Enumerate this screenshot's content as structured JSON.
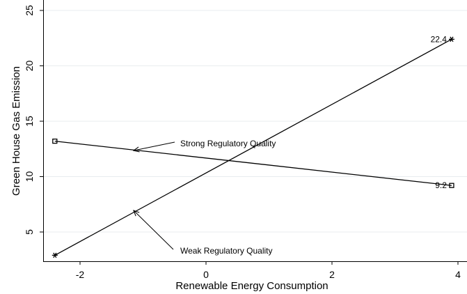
{
  "chart_data": {
    "type": "line",
    "xlabel": "Renewable Energy Consumption",
    "ylabel": "Green House Gas Emission",
    "xlim": [
      -2.45,
      3.95
    ],
    "ylim": [
      2.5,
      25.5
    ],
    "x_ticks": [
      -2,
      0,
      2,
      4
    ],
    "y_ticks": [
      5,
      10,
      15,
      20,
      25
    ],
    "grid": "horizontal",
    "legend": "none",
    "series": [
      {
        "name": "Strong Regulatory Quality",
        "marker": "square",
        "x": [
          -2.4,
          3.9
        ],
        "y": [
          13.2,
          9.2
        ],
        "end_label": "9.2"
      },
      {
        "name": "Weak Regulatory Quality",
        "marker": "star",
        "x": [
          -2.4,
          3.9
        ],
        "y": [
          2.9,
          22.4
        ],
        "end_label": "22.4"
      }
    ],
    "annotations": [
      {
        "text": "Strong Regulatory Quality",
        "points_to": {
          "x": -1.15,
          "y": 12.35
        }
      },
      {
        "text": "Weak Regulatory Quality",
        "points_to": {
          "x": -1.15,
          "y": 6.95
        }
      }
    ]
  }
}
